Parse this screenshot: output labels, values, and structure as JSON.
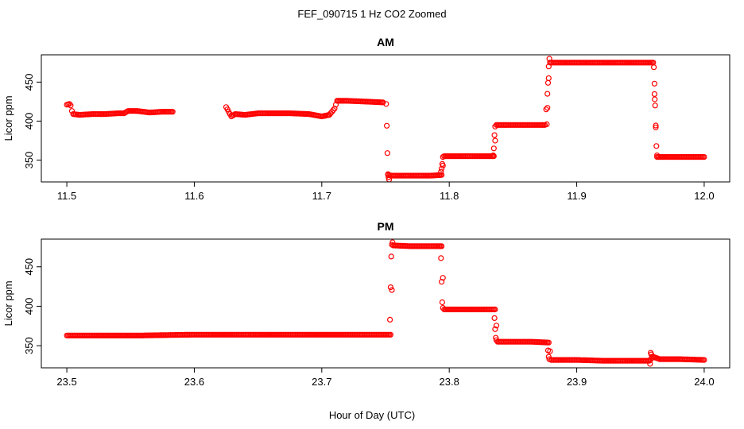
{
  "figure": {
    "title": "FEF_090715  1 Hz CO2 Zoomed",
    "xlabel": "Hour of Day (UTC)"
  },
  "colors": {
    "points": "#ff0000",
    "axis": "#000000",
    "background": "#ffffff"
  },
  "chart_data": [
    {
      "type": "scatter",
      "title": "AM",
      "ylabel": "Licor ppm",
      "xlim": [
        11.48,
        12.02
      ],
      "ylim": [
        322,
        485
      ],
      "xticks": [
        11.5,
        11.6,
        11.7,
        11.8,
        11.9,
        12.0
      ],
      "xtick_labels": [
        "11.5",
        "11.6",
        "11.7",
        "11.8",
        "11.9",
        "12.0"
      ],
      "yticks": [
        350,
        400,
        450
      ],
      "ytick_labels": [
        "350",
        "400",
        "450"
      ],
      "grid": false,
      "series": [
        {
          "segments": [
            {
              "x": [
                11.5,
                11.502,
                11.503,
                11.504,
                11.505,
                11.51,
                11.52,
                11.53,
                11.54,
                11.545,
                11.548,
                11.555,
                11.565,
                11.575,
                11.583
              ],
              "y": [
                421,
                422,
                420,
                413,
                409,
                408,
                409,
                409,
                410,
                410,
                413,
                413,
                411,
                412,
                412
              ]
            },
            {
              "x": [
                11.625,
                11.627,
                11.629,
                11.632,
                11.64,
                11.65,
                11.66,
                11.675,
                11.69,
                11.7,
                11.706,
                11.71,
                11.712,
                11.72,
                11.735,
                11.748
              ],
              "y": [
                418,
                412,
                406,
                409,
                408,
                410,
                410,
                410,
                409,
                406,
                408,
                416,
                426,
                426,
                425,
                424
              ]
            },
            {
              "x": [
                11.752,
                11.755,
                11.765,
                11.775,
                11.785,
                11.794,
                11.796,
                11.81,
                11.82,
                11.835,
                11.837,
                11.85,
                11.865,
                11.875,
                11.879,
                11.9,
                11.92,
                11.94,
                11.96,
                11.963,
                11.97,
                11.985,
                12.0
              ],
              "y": [
                331,
                330,
                330,
                330,
                330,
                331,
                355,
                355,
                355,
                355,
                395,
                395,
                395,
                395,
                475,
                475,
                475,
                475,
                475,
                354,
                354,
                354,
                354
              ]
            }
          ],
          "transitions": [
            {
              "x": [
                11.7505,
                11.751,
                11.7515,
                11.752,
                11.7524,
                11.7528
              ],
              "y": [
                422,
                394,
                359,
                332,
                328,
                325
              ]
            },
            {
              "x": [
                11.7935,
                11.794,
                11.7945,
                11.795
              ],
              "y": [
                335,
                339,
                345,
                354
              ]
            },
            {
              "x": [
                11.8345,
                11.835,
                11.8355,
                11.836
              ],
              "y": [
                356,
                365,
                382,
                393
              ]
            },
            {
              "x": [
                11.8765,
                11.877,
                11.8775,
                11.878,
                11.8785
              ],
              "y": [
                396,
                417,
                449,
                470,
                480
              ]
            },
            {
              "x": [
                11.9605,
                11.961,
                11.9612,
                11.9615,
                11.962,
                11.9625,
                11.963
              ],
              "y": [
                469,
                448,
                428,
                420,
                392,
                368,
                356
              ]
            }
          ]
        }
      ]
    },
    {
      "type": "scatter",
      "title": "PM",
      "ylabel": "Licor ppm",
      "xlim": [
        23.48,
        24.02
      ],
      "ylim": [
        322,
        485
      ],
      "xticks": [
        23.5,
        23.6,
        23.7,
        23.8,
        23.9,
        24.0
      ],
      "xtick_labels": [
        "23.5",
        "23.6",
        "23.7",
        "23.8",
        "23.9",
        "24.0"
      ],
      "yticks": [
        350,
        400,
        450
      ],
      "ytick_labels": [
        "350",
        "400",
        "450"
      ],
      "grid": false,
      "series": [
        {
          "segments": [
            {
              "x": [
                23.5,
                23.53,
                23.56,
                23.6,
                23.65,
                23.7,
                23.74,
                23.754,
                23.756,
                23.77,
                23.785,
                23.794,
                23.796,
                23.81,
                23.825,
                23.836,
                23.838,
                23.85,
                23.865,
                23.878,
                23.88,
                23.9,
                23.92,
                23.94,
                23.957,
                23.96,
                23.965,
                23.98,
                24.0
              ],
              "y": [
                363,
                363,
                363,
                364,
                364,
                364,
                364,
                364,
                477,
                476,
                476,
                476,
                396,
                396,
                396,
                396,
                355,
                355,
                355,
                354,
                332,
                332,
                331,
                331,
                331,
                336,
                333,
                333,
                332
              ]
            }
          ],
          "transitions": [
            {
              "x": [
                23.7535,
                23.754,
                23.7545,
                23.755,
                23.7555
              ],
              "y": [
                383,
                424,
                463,
                478,
                481
              ]
            },
            {
              "x": [
                23.7935,
                23.794,
                23.7945,
                23.795
              ],
              "y": [
                461,
                431,
                405,
                398
              ]
            },
            {
              "x": [
                23.8355,
                23.836,
                23.8365,
                23.837
              ],
              "y": [
                385,
                371,
                360,
                357
              ]
            },
            {
              "x": [
                23.8775,
                23.878,
                23.8785
              ],
              "y": [
                344,
                336,
                333
              ]
            },
            {
              "x": [
                23.9575,
                23.958,
                23.9585,
                23.959
              ],
              "y": [
                327,
                341,
                339,
                336
              ]
            }
          ]
        }
      ]
    }
  ]
}
